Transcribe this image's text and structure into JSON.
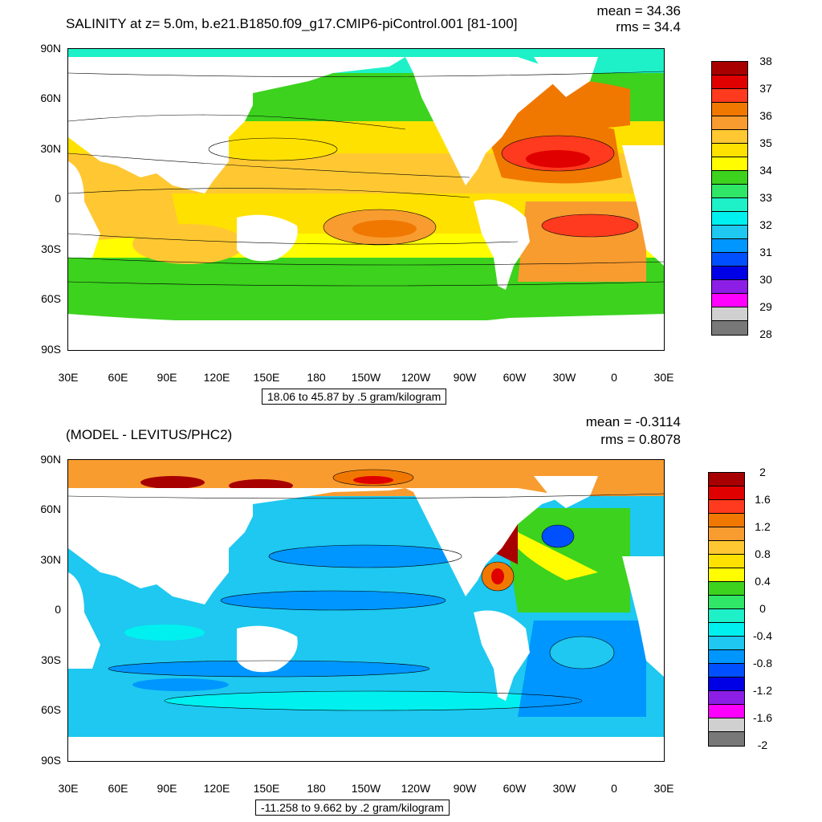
{
  "panels": [
    {
      "title": "SALINITY at z=   5.0m, b.e21.B1850.f09_g17.CMIP6-piControl.001 [81-100]",
      "stats": {
        "mean": "mean = 34.36",
        "rms": "rms = 34.4"
      },
      "range_text": "18.06 to 45.87 by .5 gram/kilogram",
      "colorbar": {
        "labels": [
          "38",
          "37",
          "36",
          "35",
          "34",
          "33",
          "32",
          "31",
          "30",
          "29",
          "28"
        ],
        "colors": [
          "#a80000",
          "#e00000",
          "#ff3a1e",
          "#f07800",
          "#f89c30",
          "#ffc832",
          "#ffe100",
          "#fffd00",
          "#3cd21e",
          "#2fe666",
          "#1ef0c8",
          "#00f0f0",
          "#1ec8f0",
          "#0096ff",
          "#0050ff",
          "#0000e6",
          "#8c1ee6",
          "#ff00ff",
          "#d0d0d0",
          "#787878"
        ]
      }
    },
    {
      "title": "(MODEL - LEVITUS/PHC2)",
      "stats": {
        "mean": "mean = -0.3114",
        "rms": "rms = 0.8078"
      },
      "range_text": "-11.258 to 9.662 by .2 gram/kilogram",
      "colorbar": {
        "labels": [
          "2",
          "1.6",
          "1.2",
          "0.8",
          "0.4",
          "0",
          "-0.4",
          "-0.8",
          "-1.2",
          "-1.6",
          "-2"
        ],
        "colors": [
          "#a80000",
          "#e00000",
          "#ff3a1e",
          "#f07800",
          "#f89c30",
          "#ffc832",
          "#ffe100",
          "#fffd00",
          "#3cd21e",
          "#2fe666",
          "#1ef0c8",
          "#00f0f0",
          "#1ec8f0",
          "#0096ff",
          "#0050ff",
          "#0000e6",
          "#8c1ee6",
          "#ff00ff",
          "#d0d0d0",
          "#787878"
        ]
      }
    }
  ],
  "axes": {
    "lat_labels": [
      "90N",
      "60N",
      "30N",
      "0",
      "30S",
      "60S",
      "90S"
    ],
    "lon_labels": [
      "30E",
      "60E",
      "90E",
      "120E",
      "150E",
      "180",
      "150W",
      "120W",
      "90W",
      "60W",
      "30W",
      "0",
      "30E"
    ]
  }
}
